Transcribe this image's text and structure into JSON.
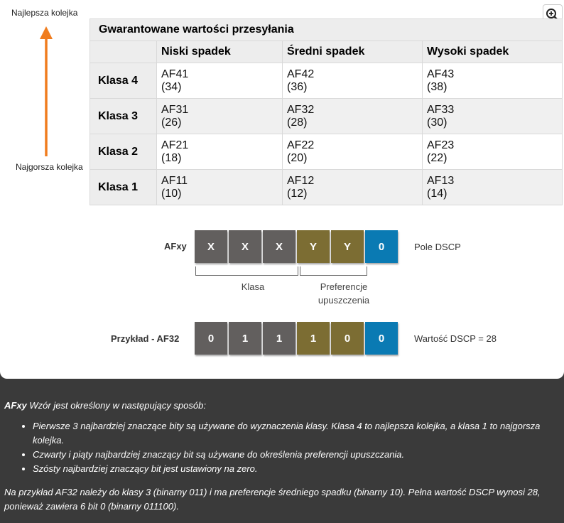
{
  "figure": {
    "best_queue_label": "Najlepsza kolejka",
    "worst_queue_label": "Najgorsza kolejka",
    "arrow_color": "#f07d1f",
    "zoom_icon": "zoom-in-icon",
    "table": {
      "title": "Gwarantowane wartości przesyłania",
      "columns": [
        "Niski spadek",
        "Średni spadek",
        "Wysoki spadek"
      ],
      "rows": [
        {
          "label": "Klasa 4",
          "cells": [
            [
              "AF41",
              "(34)"
            ],
            [
              "AF42",
              "(36)"
            ],
            [
              "AF43",
              "(38)"
            ]
          ]
        },
        {
          "label": "Klasa 3",
          "cells": [
            [
              "AF31",
              "(26)"
            ],
            [
              "AF32",
              "(28)"
            ],
            [
              "AF33",
              "(30)"
            ]
          ]
        },
        {
          "label": "Klasa 2",
          "cells": [
            [
              "AF21",
              "(18)"
            ],
            [
              "AF22",
              "(20)"
            ],
            [
              "AF23",
              "(22)"
            ]
          ]
        },
        {
          "label": "Klasa 1",
          "cells": [
            [
              "AF11",
              "(10)"
            ],
            [
              "AF12",
              "(12)"
            ],
            [
              "AF13",
              "(14)"
            ]
          ]
        }
      ]
    },
    "colors": {
      "class_bits": "#625f5e",
      "drop_bits": "#7c6d33",
      "zero_bit": "#0a7ab3"
    },
    "afxy": {
      "label": "AFxy",
      "bits": [
        "X",
        "X",
        "X",
        "Y",
        "Y",
        "0"
      ],
      "side_label": "Pole DSCP"
    },
    "bracket_labels": {
      "class": "Klasa",
      "drop_line1": "Preferencje",
      "drop_line2": "upuszczenia"
    },
    "example": {
      "label": "Przykład - AF32",
      "bits": [
        "0",
        "1",
        "1",
        "1",
        "0",
        "0"
      ],
      "side_label": "Wartość DSCP = 28"
    }
  },
  "notes": {
    "intro_bold": "AFxy",
    "intro_rest": " Wzór jest określony w następujący sposób:",
    "bullets": [
      "Pierwsze 3 najbardziej znaczące bity są używane do wyznaczenia klasy. Klasa 4 to najlepsza kolejka, a klasa 1 to najgorsza kolejka.",
      "Czwarty i piąty najbardziej znaczący bit są używane do określenia preferencji upuszczania.",
      "Szósty najbardziej znaczący bit jest ustawiony na zero."
    ],
    "example_text": "Na przykład AF32 należy do klasy 3 (binarny 011) i ma preferencje średniego spadku (binarny 10). Pełna wartość DSCP wynosi 28, ponieważ zawiera 6 bit 0 (binarny 011100)."
  }
}
